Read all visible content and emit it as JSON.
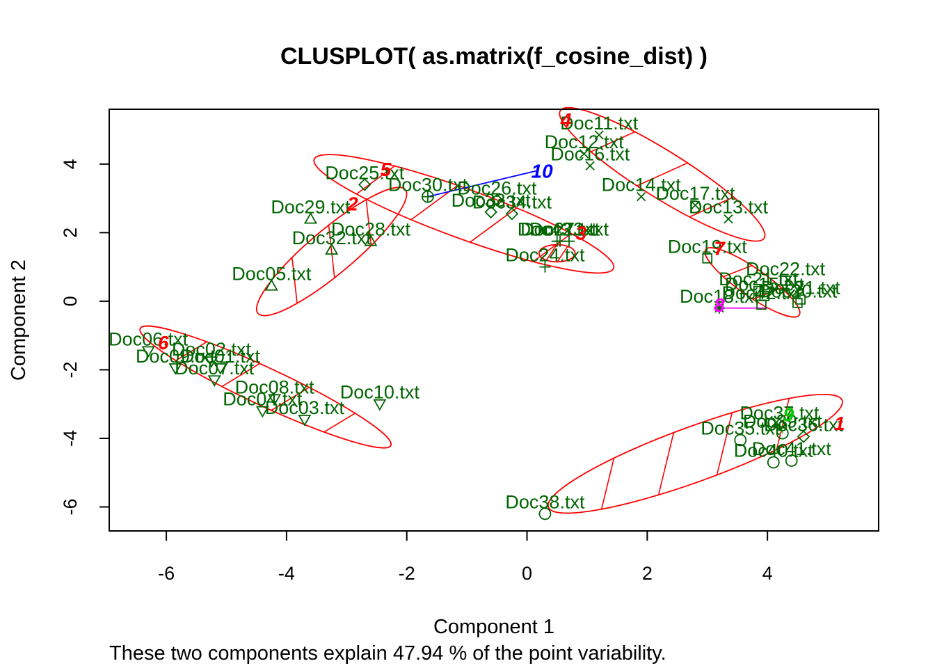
{
  "chart_data": {
    "type": "scatter",
    "title": "CLUSPLOT( as.matrix(f_cosine_dist) )",
    "xlabel": "Component 1",
    "ylabel": "Component 2",
    "note": "These two components explain 47.94 % of the point variability.",
    "xlim": [
      -6.95,
      5.85
    ],
    "ylim": [
      -6.7,
      5.6
    ],
    "xticks": [
      -6,
      -4,
      -2,
      0,
      2,
      4
    ],
    "yticks": [
      -6,
      -4,
      -2,
      0,
      2,
      4
    ],
    "colors": {
      "point": "#006400",
      "ellipse": "#FF0000",
      "frame": "#000000"
    },
    "points": [
      {
        "label": "Doc01.txt",
        "x": -5.1,
        "y": -1.95,
        "shape": "triangle-down"
      },
      {
        "label": "Doc02.txt",
        "x": -5.25,
        "y": -1.75,
        "shape": "triangle-down"
      },
      {
        "label": "Doc03.txt",
        "x": -3.7,
        "y": -3.45,
        "shape": "triangle-down"
      },
      {
        "label": "Doc04.txt",
        "x": -4.4,
        "y": -3.2,
        "shape": "triangle-down"
      },
      {
        "label": "Doc05.txt",
        "x": -4.25,
        "y": 0.45,
        "shape": "triangle-up"
      },
      {
        "label": "Doc06.txt",
        "x": -6.3,
        "y": -1.45,
        "shape": "triangle-down"
      },
      {
        "label": "Doc07.txt",
        "x": -5.2,
        "y": -2.3,
        "shape": "triangle-down"
      },
      {
        "label": "Doc08.txt",
        "x": -4.2,
        "y": -2.85,
        "shape": "triangle-down"
      },
      {
        "label": "Doc09.txt",
        "x": -5.85,
        "y": -1.95,
        "shape": "triangle-down"
      },
      {
        "label": "Doc10.txt",
        "x": -2.45,
        "y": -3.0,
        "shape": "triangle-down"
      },
      {
        "label": "Doc11.txt",
        "x": 1.2,
        "y": 4.85,
        "shape": "x"
      },
      {
        "label": "Doc12.txt",
        "x": 0.95,
        "y": 4.3,
        "shape": "x"
      },
      {
        "label": "Doc13.txt",
        "x": 3.35,
        "y": 2.4,
        "shape": "x"
      },
      {
        "label": "Doc14.txt",
        "x": 1.9,
        "y": 3.05,
        "shape": "x"
      },
      {
        "label": "Doc15.txt",
        "x": 3.95,
        "y": 0.15,
        "shape": "square"
      },
      {
        "label": "Doc16.txt",
        "x": 1.05,
        "y": 3.95,
        "shape": "x"
      },
      {
        "label": "Doc17.txt",
        "x": 2.8,
        "y": 2.8,
        "shape": "x"
      },
      {
        "label": "Doc18.txt",
        "x": 3.2,
        "y": -0.2,
        "shape": "star"
      },
      {
        "label": "Doc19.txt",
        "x": 3.0,
        "y": 1.25,
        "shape": "square"
      },
      {
        "label": "Doc20.txt",
        "x": 4.5,
        "y": -0.05,
        "shape": "square"
      },
      {
        "label": "Doc21.txt",
        "x": 3.85,
        "y": 0.3,
        "shape": "square"
      },
      {
        "label": "Doc22.txt",
        "x": 4.3,
        "y": 0.6,
        "shape": "square"
      },
      {
        "label": "Doc23.txt",
        "x": 0.7,
        "y": 1.75,
        "shape": "plus"
      },
      {
        "label": "Doc24.txt",
        "x": 0.3,
        "y": 1.0,
        "shape": "plus"
      },
      {
        "label": "Doc25.txt",
        "x": -2.7,
        "y": 3.4,
        "shape": "diamond"
      },
      {
        "label": "Doc26.txt",
        "x": -0.5,
        "y": 2.95,
        "shape": "diamond"
      },
      {
        "label": "Doc27.txt",
        "x": 0.55,
        "y": 1.75,
        "shape": "plus"
      },
      {
        "label": "Doc28.txt",
        "x": -2.6,
        "y": 1.75,
        "shape": "triangle-up"
      },
      {
        "label": "Doc29.txt",
        "x": -3.6,
        "y": 2.4,
        "shape": "triangle-up"
      },
      {
        "label": "Doc30.txt",
        "x": -1.65,
        "y": 3.05,
        "shape": "circle-plus"
      },
      {
        "label": "Doc31.txt",
        "x": 4.55,
        "y": 0.05,
        "shape": "square"
      },
      {
        "label": "Doc32.txt",
        "x": -3.25,
        "y": 1.5,
        "shape": "triangle-up"
      },
      {
        "label": "Doc33.txt",
        "x": -0.6,
        "y": 2.6,
        "shape": "diamond"
      },
      {
        "label": "Doc34.txt",
        "x": -0.25,
        "y": 2.55,
        "shape": "diamond"
      },
      {
        "label": "Doc35.txt",
        "x": 3.55,
        "y": -4.05,
        "shape": "circle"
      },
      {
        "label": "Doc36.txt",
        "x": 4.6,
        "y": -3.95,
        "shape": "diamond"
      },
      {
        "label": "Doc37.txt",
        "x": 4.2,
        "y": -3.6,
        "shape": "diamond"
      },
      {
        "label": "Doc38.txt",
        "x": 0.3,
        "y": -6.2,
        "shape": "circle"
      },
      {
        "label": "Doc39.txt",
        "x": 4.25,
        "y": -3.85,
        "shape": "circle"
      },
      {
        "label": "Doc40.txt",
        "x": 4.1,
        "y": -4.7,
        "shape": "circle"
      },
      {
        "label": "Doc41.txt",
        "x": 4.4,
        "y": -4.65,
        "shape": "circle"
      },
      {
        "label": "Doc42.txt",
        "x": 3.9,
        "y": -0.1,
        "shape": "square"
      },
      {
        "label": "Doc43.txt",
        "x": 0.5,
        "y": 1.75,
        "shape": "plus"
      }
    ],
    "clusters": [
      {
        "label": "1",
        "color": "#FF0000",
        "type": "ellipse",
        "cx": 2.8,
        "cy": -4.45,
        "a": 2.6,
        "b": 0.8,
        "angle_deg": 20,
        "label_x": 5.2,
        "label_y": -3.55
      },
      {
        "label": "2",
        "color": "#FF0000",
        "type": "ellipse",
        "cx": -3.25,
        "cy": 1.45,
        "a": 1.6,
        "b": 0.65,
        "angle_deg": 40,
        "label_x": -2.9,
        "label_y": 2.85
      },
      {
        "label": "3",
        "color": "#FF0000",
        "type": "ellipse",
        "cx": 0.5,
        "cy": 1.4,
        "a": 0.3,
        "b": 0.25,
        "angle_deg": 0,
        "label_x": 0.9,
        "label_y": 2.0
      },
      {
        "label": "4",
        "color": "#FF0000",
        "type": "ellipse",
        "cx": 2.25,
        "cy": 3.7,
        "a": 2.0,
        "b": 0.68,
        "angle_deg": -32,
        "label_x": 0.65,
        "label_y": 5.3
      },
      {
        "label": "5",
        "color": "#FF0000",
        "type": "ellipse",
        "cx": -1.05,
        "cy": 2.55,
        "a": 2.65,
        "b": 0.72,
        "angle_deg": -20,
        "label_x": -2.35,
        "label_y": 3.85
      },
      {
        "label": "6",
        "color": "#FF0000",
        "type": "ellipse",
        "cx": -4.35,
        "cy": -2.5,
        "a": 2.3,
        "b": 0.55,
        "angle_deg": -25,
        "label_x": -6.05,
        "label_y": -1.2
      },
      {
        "label": "7",
        "color": "#FF0000",
        "type": "ellipse",
        "cx": 3.75,
        "cy": 0.55,
        "a": 0.95,
        "b": 0.4,
        "angle_deg": -35,
        "label_x": 3.2,
        "label_y": 1.55
      },
      {
        "label": "8",
        "color": "#FF00FF",
        "type": "segment",
        "x1": 3.2,
        "y1": -0.2,
        "x2": 4.0,
        "y2": -0.2,
        "label_x": 3.2,
        "label_y": -0.1
      },
      {
        "label": "9",
        "color": "#00CC00",
        "type": "segment",
        "x1": 4.2,
        "y1": -3.55,
        "x2": 4.25,
        "y2": -3.85,
        "label_x": 4.35,
        "label_y": -3.3
      },
      {
        "label": "10",
        "color": "#0000FF",
        "type": "segment",
        "x1": -1.65,
        "y1": 3.05,
        "x2": 0.15,
        "y2": 3.8,
        "label_x": 0.25,
        "label_y": 3.8
      }
    ]
  }
}
